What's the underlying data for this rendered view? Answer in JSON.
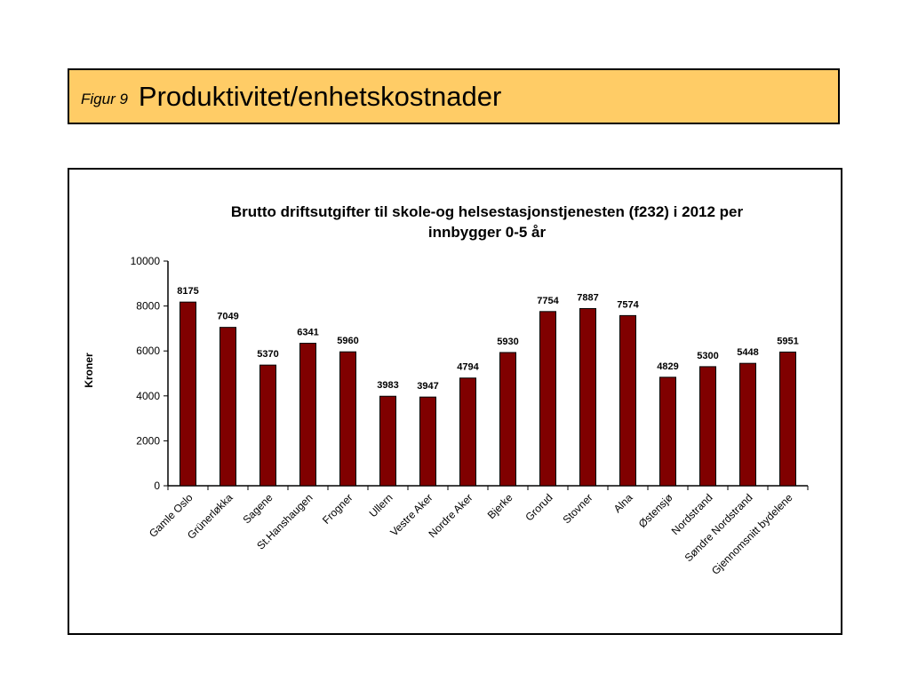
{
  "slide": {
    "figure_label": "Figur  9",
    "figure_title": "Produktivitet/enhetskostnader"
  },
  "colors": {
    "header_fill": "#ffcc66",
    "bar_fill": "#800000",
    "bar_stroke": "#000000"
  },
  "chart_data": {
    "type": "bar",
    "title_lines": [
      "Brutto driftsutgifter til skole-og helsestasjonstjenesten  (f232) i 2012 per",
      "innbygger 0-5 år"
    ],
    "xlabel": "",
    "ylabel": "Kroner",
    "ylim": [
      0,
      10000
    ],
    "yticks": [
      0,
      2000,
      4000,
      6000,
      8000,
      10000
    ],
    "grid": false,
    "legend": "none",
    "categories": [
      "Gamle Oslo",
      "Grünerløkka",
      "Sagene",
      "St.Hanshaugen",
      "Frogner",
      "Ullern",
      "Vestre Aker",
      "Nordre Aker",
      "Bjerke",
      "Grorud",
      "Stovner",
      "Alna",
      "Østensjø",
      "Nordstrand",
      "Søndre Nordstrand",
      "Gjennomsnitt bydelene"
    ],
    "values": [
      8175,
      7049,
      5370,
      6341,
      5960,
      3983,
      3947,
      4794,
      5930,
      7754,
      7887,
      7574,
      4829,
      5300,
      5448,
      5951
    ]
  }
}
